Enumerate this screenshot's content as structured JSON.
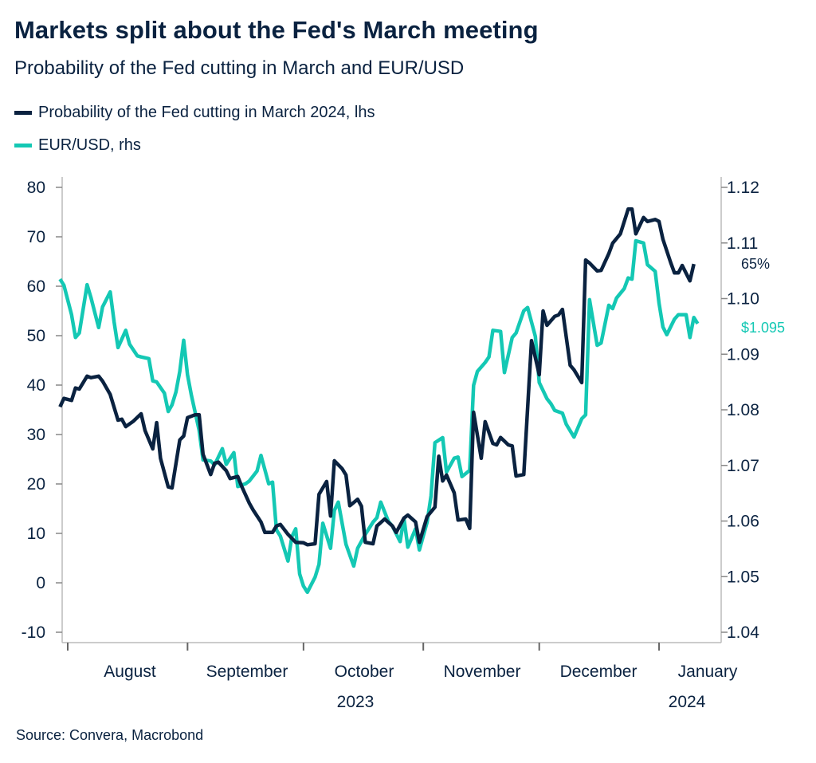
{
  "header": {
    "title": "Markets split about the Fed's March meeting",
    "subtitle": "Probability of the Fed cutting in March and EUR/USD"
  },
  "footer": {
    "source": "Source: Convera, Macrobond"
  },
  "chart_data": {
    "type": "line",
    "title": "Markets split about the Fed's March meeting",
    "subtitle": "Probability of the Fed cutting in March and EUR/USD",
    "legend_position": "top-left",
    "grid": false,
    "colors": {
      "fed": "#0a2240",
      "eurusd": "#14c8b4"
    },
    "x_axis": {
      "type": "date",
      "range": [
        "2023-07-28",
        "2024-01-13"
      ],
      "month_labels": [
        "August",
        "September",
        "October",
        "November",
        "December",
        "January"
      ],
      "year_labels": [
        "2023",
        "2024"
      ]
    },
    "y_left": {
      "ylim": [
        -10,
        80
      ],
      "ticks": [
        "80",
        "70",
        "60",
        "50",
        "40",
        "30",
        "20",
        "10",
        "0",
        "-10"
      ]
    },
    "y_right": {
      "ylim": [
        1.04,
        1.12
      ],
      "ticks": [
        "1.12",
        "1.11",
        "1.10",
        "1.09",
        "1.08",
        "1.07",
        "1.06",
        "1.05",
        "1.04"
      ]
    },
    "annotations": {
      "fed_last": "65%",
      "eurusd_last": "$1.095"
    },
    "series": [
      {
        "name": "Probability of the Fed cutting in March 2024, lhs",
        "axis": "left",
        "x": [
          "2023-07-30",
          "2023-07-31",
          "2023-08-02",
          "2023-08-03",
          "2023-08-04",
          "2023-08-06",
          "2023-08-07",
          "2023-08-09",
          "2023-08-10",
          "2023-08-12",
          "2023-08-14",
          "2023-08-15",
          "2023-08-16",
          "2023-08-18",
          "2023-08-20",
          "2023-08-21",
          "2023-08-23",
          "2023-08-24",
          "2023-08-25",
          "2023-08-27",
          "2023-08-28",
          "2023-08-30",
          "2023-08-31",
          "2023-09-01",
          "2023-09-03",
          "2023-09-04",
          "2023-09-05",
          "2023-09-07",
          "2023-09-08",
          "2023-09-09",
          "2023-09-11",
          "2023-09-12",
          "2023-09-14",
          "2023-09-15",
          "2023-09-17",
          "2023-09-18",
          "2023-09-20",
          "2023-09-21",
          "2023-09-23",
          "2023-09-24",
          "2023-09-25",
          "2023-09-27",
          "2023-09-29",
          "2023-10-01",
          "2023-10-02",
          "2023-10-04",
          "2023-10-05",
          "2023-10-07",
          "2023-10-08",
          "2023-10-09",
          "2023-10-11",
          "2023-10-12",
          "2023-10-13",
          "2023-10-15",
          "2023-10-16",
          "2023-10-17",
          "2023-10-19",
          "2023-10-20",
          "2023-10-22",
          "2023-10-24",
          "2023-10-25",
          "2023-10-27",
          "2023-10-28",
          "2023-10-30",
          "2023-10-31",
          "2023-11-02",
          "2023-11-04",
          "2023-11-05",
          "2023-11-06",
          "2023-11-07",
          "2023-11-09",
          "2023-11-10",
          "2023-11-12",
          "2023-11-13",
          "2023-11-14",
          "2023-11-16",
          "2023-11-17",
          "2023-11-19",
          "2023-11-20",
          "2023-11-21",
          "2023-11-23",
          "2023-11-24",
          "2023-11-25",
          "2023-11-27",
          "2023-11-29",
          "2023-12-01",
          "2023-12-02",
          "2023-12-03",
          "2023-12-05",
          "2023-12-06",
          "2023-12-07",
          "2023-12-09",
          "2023-12-10",
          "2023-12-12",
          "2023-12-13",
          "2023-12-14",
          "2023-12-16",
          "2023-12-17",
          "2023-12-19",
          "2023-12-20",
          "2023-12-22",
          "2023-12-24",
          "2023-12-25",
          "2023-12-26",
          "2023-12-28",
          "2023-12-29",
          "2023-12-31",
          "2024-01-01",
          "2024-01-02",
          "2024-01-04",
          "2024-01-05",
          "2024-01-06",
          "2024-01-07",
          "2024-01-09",
          "2024-01-10"
        ],
        "values": [
          35.6,
          37.3,
          36.9,
          39.4,
          39.2,
          41.8,
          41.5,
          41.8,
          40.8,
          38.1,
          32.9,
          33.1,
          31.6,
          32.7,
          34.2,
          30.8,
          27.1,
          32.4,
          25.2,
          19.4,
          19.2,
          28.9,
          29.7,
          33.4,
          34.0,
          34.0,
          26.0,
          21.9,
          24.2,
          24.4,
          22.7,
          21.1,
          21.5,
          19.5,
          16.1,
          14.7,
          12.3,
          10.2,
          10.2,
          11.5,
          11.8,
          9.8,
          8.2,
          8.1,
          7.7,
          7.9,
          17.9,
          20.5,
          13.5,
          24.7,
          23.1,
          21.8,
          15.6,
          16.9,
          15.5,
          8.2,
          7.9,
          11.5,
          12.9,
          11.5,
          10.2,
          13.1,
          13.7,
          12.3,
          8.2,
          13.4,
          15.3,
          25.6,
          20.6,
          21.8,
          18.2,
          12.7,
          12.9,
          11.0,
          34.5,
          25.2,
          32.6,
          28.2,
          27.9,
          29.4,
          27.9,
          27.7,
          21.6,
          21.9,
          49.0,
          42.1,
          55.0,
          52.1,
          53.9,
          54.2,
          55.3,
          44.0,
          43.1,
          40.5,
          65.3,
          64.7,
          63.1,
          63.2,
          66.6,
          68.7,
          70.6,
          75.6,
          75.6,
          70.6,
          73.9,
          73.1,
          73.5,
          73.1,
          69.5,
          64.8,
          62.7,
          62.7,
          64.2,
          61.1,
          64.5
        ]
      },
      {
        "name": "EUR/USD, rhs",
        "axis": "right",
        "x": [
          "2023-07-30",
          "2023-07-31",
          "2023-08-02",
          "2023-08-03",
          "2023-08-04",
          "2023-08-06",
          "2023-08-07",
          "2023-08-09",
          "2023-08-10",
          "2023-08-12",
          "2023-08-13",
          "2023-08-14",
          "2023-08-16",
          "2023-08-17",
          "2023-08-19",
          "2023-08-20",
          "2023-08-22",
          "2023-08-23",
          "2023-08-24",
          "2023-08-26",
          "2023-08-27",
          "2023-08-28",
          "2023-08-29",
          "2023-08-30",
          "2023-08-31",
          "2023-09-01",
          "2023-09-02",
          "2023-09-04",
          "2023-09-05",
          "2023-09-07",
          "2023-09-08",
          "2023-09-10",
          "2023-09-11",
          "2023-09-13",
          "2023-09-14",
          "2023-09-16",
          "2023-09-17",
          "2023-09-19",
          "2023-09-20",
          "2023-09-22",
          "2023-09-23",
          "2023-09-24",
          "2023-09-25",
          "2023-09-27",
          "2023-09-28",
          "2023-09-29",
          "2023-09-30",
          "2023-10-01",
          "2023-10-02",
          "2023-10-04",
          "2023-10-05",
          "2023-10-06",
          "2023-10-08",
          "2023-10-09",
          "2023-10-10",
          "2023-10-12",
          "2023-10-14",
          "2023-10-15",
          "2023-10-17",
          "2023-10-19",
          "2023-10-20",
          "2023-10-21",
          "2023-10-23",
          "2023-10-24",
          "2023-10-26",
          "2023-10-27",
          "2023-10-28",
          "2023-10-30",
          "2023-10-31",
          "2023-11-02",
          "2023-11-03",
          "2023-11-04",
          "2023-11-06",
          "2023-11-07",
          "2023-11-09",
          "2023-11-10",
          "2023-11-11",
          "2023-11-13",
          "2023-11-14",
          "2023-11-15",
          "2023-11-17",
          "2023-11-18",
          "2023-11-19",
          "2023-11-21",
          "2023-11-22",
          "2023-11-24",
          "2023-11-25",
          "2023-11-27",
          "2023-11-28",
          "2023-11-30",
          "2023-12-01",
          "2023-12-03",
          "2023-12-04",
          "2023-12-05",
          "2023-12-07",
          "2023-12-08",
          "2023-12-10",
          "2023-12-12",
          "2023-12-13",
          "2023-12-14",
          "2023-12-16",
          "2023-12-17",
          "2023-12-19",
          "2023-12-20",
          "2023-12-21",
          "2023-12-23",
          "2023-12-24",
          "2023-12-25",
          "2023-12-26",
          "2023-12-28",
          "2023-12-29",
          "2023-12-31",
          "2024-01-01",
          "2024-01-02",
          "2024-01-03",
          "2024-01-05",
          "2024-01-06",
          "2024-01-08",
          "2024-01-09",
          "2024-01-10",
          "2024-01-11"
        ],
        "values": [
          1.1035,
          1.1024,
          1.0971,
          1.093,
          1.0938,
          1.1025,
          1.1002,
          1.0948,
          1.0985,
          1.1012,
          1.0958,
          1.0912,
          1.0943,
          1.0918,
          1.0897,
          1.0895,
          1.0892,
          1.0852,
          1.085,
          1.083,
          1.0797,
          1.0809,
          1.0832,
          1.0869,
          1.0925,
          1.0863,
          1.0826,
          1.0763,
          1.071,
          1.0708,
          1.0701,
          1.073,
          1.0702,
          1.0723,
          1.0662,
          1.0667,
          1.0672,
          1.069,
          1.0718,
          1.0667,
          1.067,
          1.0584,
          1.0573,
          1.0528,
          1.0572,
          1.0586,
          1.0505,
          1.0483,
          1.0472,
          1.0499,
          1.0522,
          1.0596,
          1.0551,
          1.0619,
          1.0634,
          1.0558,
          1.0519,
          1.0551,
          1.0576,
          1.0598,
          1.0606,
          1.0634,
          1.0599,
          1.0591,
          1.0563,
          1.0605,
          1.0553,
          1.0586,
          1.0548,
          1.0598,
          1.0645,
          1.0741,
          1.075,
          1.0688,
          1.0713,
          1.0715,
          1.068,
          1.0691,
          1.0844,
          1.0869,
          1.0885,
          1.0895,
          1.0943,
          1.0941,
          1.0867,
          1.093,
          1.0938,
          1.0978,
          1.0984,
          1.0932,
          1.0849,
          1.082,
          1.0811,
          1.0799,
          1.0794,
          1.0774,
          1.0751,
          1.0784,
          1.0791,
          1.0998,
          1.0916,
          1.092,
          1.0988,
          1.0982,
          1.1001,
          1.1018,
          1.1037,
          1.1035,
          1.1104,
          1.11,
          1.1061,
          1.1049,
          1.0992,
          1.0949,
          1.0935,
          1.0963,
          1.0971,
          1.0971,
          1.093,
          1.0966,
          1.0955
        ]
      }
    ]
  }
}
